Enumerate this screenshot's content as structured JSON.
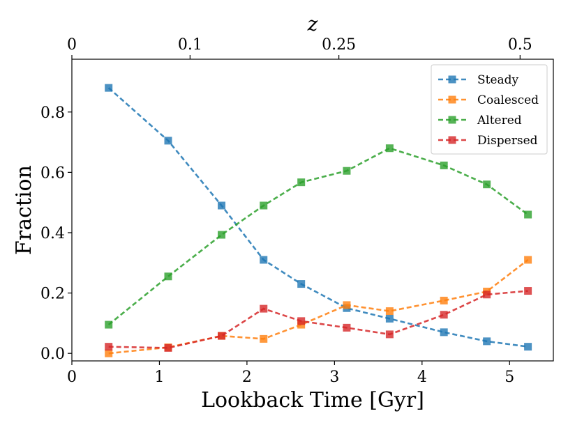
{
  "chart_data": {
    "type": "line",
    "title": "",
    "xlabel": "Lookback Time [Gyr]",
    "ylabel": "Fraction",
    "xlim": [
      0,
      5.5
    ],
    "ylim": [
      -0.025,
      0.975
    ],
    "x_ticks": [
      0,
      1,
      2,
      3,
      4,
      5
    ],
    "y_ticks": [
      0.0,
      0.2,
      0.4,
      0.6,
      0.8
    ],
    "x": [
      0.42,
      1.1,
      1.71,
      2.19,
      2.62,
      3.14,
      3.63,
      4.25,
      4.74,
      5.21
    ],
    "series": [
      {
        "name": "Steady",
        "color": "#1f77b4",
        "values": [
          0.88,
          0.705,
          0.49,
          0.31,
          0.23,
          0.15,
          0.115,
          0.07,
          0.04,
          0.022
        ]
      },
      {
        "name": "Coalesced",
        "color": "#ff7f0e",
        "values": [
          0.0,
          0.02,
          0.058,
          0.048,
          0.095,
          0.16,
          0.14,
          0.175,
          0.205,
          0.31
        ]
      },
      {
        "name": "Altered",
        "color": "#2ca02c",
        "values": [
          0.095,
          0.255,
          0.393,
          0.49,
          0.567,
          0.605,
          0.68,
          0.623,
          0.56,
          0.46
        ]
      },
      {
        "name": "Dispersed",
        "color": "#d62728",
        "values": [
          0.022,
          0.018,
          0.058,
          0.148,
          0.107,
          0.085,
          0.063,
          0.128,
          0.195,
          0.207
        ]
      }
    ],
    "legend_position": "top-right",
    "top_axis": {
      "label": "z",
      "ticks": [
        {
          "label": "0",
          "x": 0.0
        },
        {
          "label": "0.1",
          "x": 1.35
        },
        {
          "label": "0.25",
          "x": 3.05
        },
        {
          "label": "0.5",
          "x": 5.12
        }
      ]
    }
  }
}
